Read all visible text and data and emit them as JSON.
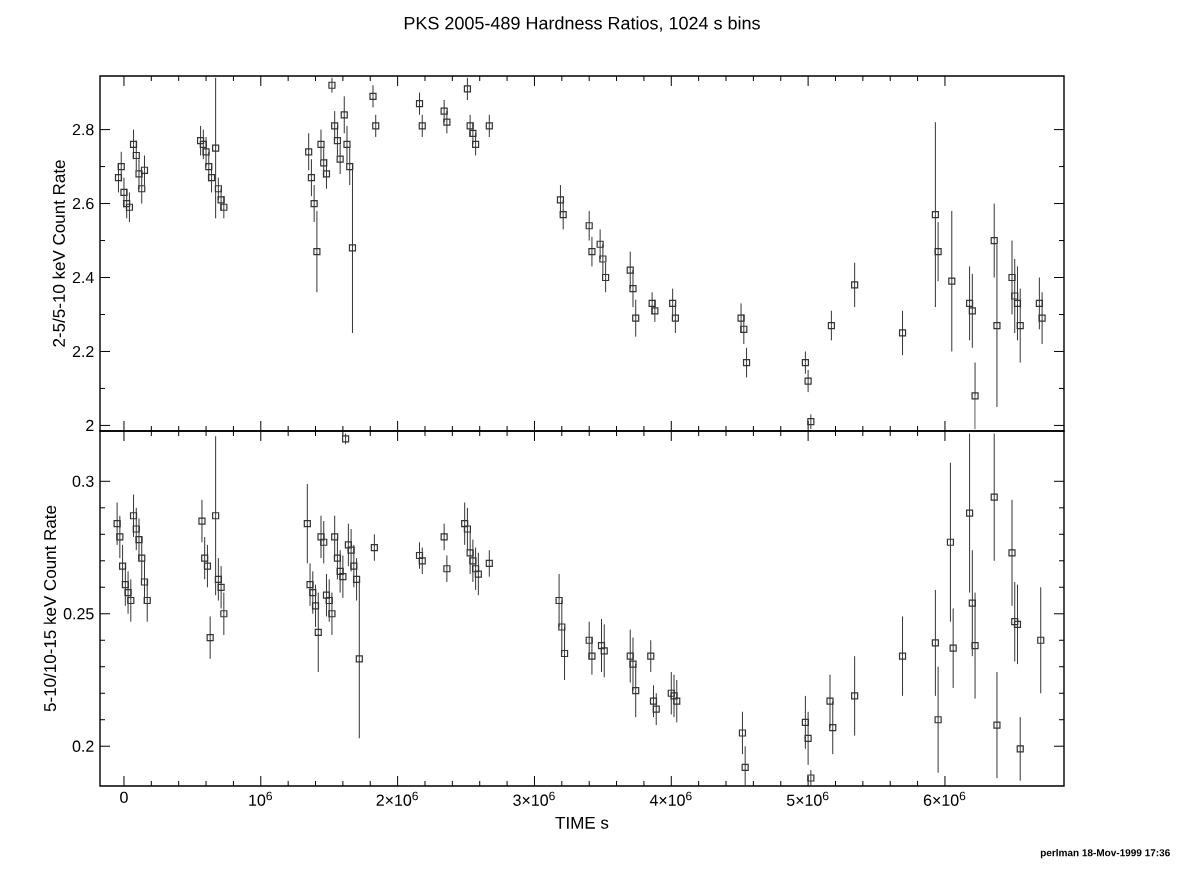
{
  "chart_data": [
    {
      "type": "scatter",
      "title": "PKS 2005-489 Hardness Ratios, 1024 s bins",
      "ylabel": "2-5/5-10 keV Count Rate",
      "marker": "square",
      "color": "#333333",
      "tick_labels": "y",
      "xlim": [
        -175000,
        6870000
      ],
      "ylim": [
        1.985,
        2.945
      ],
      "xticks": [
        {
          "value": 0,
          "label": null
        },
        {
          "value": 1000000,
          "label": null
        },
        {
          "value": 2000000,
          "label": null
        },
        {
          "value": 3000000,
          "label": null
        },
        {
          "value": 4000000,
          "label": null
        },
        {
          "value": 5000000,
          "label": null
        },
        {
          "value": 6000000,
          "label": null
        }
      ],
      "yticks": [
        2,
        2.2,
        2.4,
        2.6,
        2.8
      ],
      "x": [
        -40000,
        -20000,
        0,
        20000,
        40000,
        70000,
        90000,
        110000,
        130000,
        150000,
        560000,
        580000,
        600000,
        620000,
        640000,
        670000,
        690000,
        710000,
        730000,
        1350000,
        1370000,
        1390000,
        1410000,
        1440000,
        1460000,
        1480000,
        1520000,
        1540000,
        1560000,
        1580000,
        1610000,
        1630000,
        1650000,
        1670000,
        1820000,
        1840000,
        2160000,
        2180000,
        2340000,
        2360000,
        2510000,
        2530000,
        2550000,
        2570000,
        2670000,
        3190000,
        3210000,
        3400000,
        3420000,
        3480000,
        3500000,
        3520000,
        3700000,
        3720000,
        3740000,
        3860000,
        3880000,
        4010000,
        4030000,
        4510000,
        4530000,
        4550000,
        4980000,
        5000000,
        5020000,
        5170000,
        5340000,
        5690000,
        5930000,
        5950000,
        6050000,
        6180000,
        6200000,
        6220000,
        6360000,
        6380000,
        6490000,
        6510000,
        6530000,
        6550000,
        6690000,
        6710000
      ],
      "values": [
        2.67,
        2.7,
        2.63,
        2.6,
        2.59,
        2.76,
        2.73,
        2.68,
        2.64,
        2.69,
        2.77,
        2.76,
        2.74,
        2.7,
        2.67,
        2.75,
        2.64,
        2.61,
        2.59,
        2.74,
        2.67,
        2.6,
        2.47,
        2.76,
        2.71,
        2.68,
        2.92,
        2.81,
        2.77,
        2.72,
        2.84,
        2.76,
        2.7,
        2.48,
        2.89,
        2.81,
        2.87,
        2.81,
        2.85,
        2.82,
        2.91,
        2.81,
        2.79,
        2.76,
        2.81,
        2.61,
        2.57,
        2.54,
        2.47,
        2.49,
        2.45,
        2.4,
        2.42,
        2.37,
        2.29,
        2.33,
        2.31,
        2.33,
        2.29,
        2.29,
        2.26,
        2.17,
        2.17,
        2.12,
        2.01,
        2.27,
        2.38,
        2.25,
        2.57,
        2.47,
        2.39,
        2.33,
        2.31,
        2.08,
        2.5,
        2.27,
        2.4,
        2.35,
        2.33,
        2.27,
        2.33,
        2.29
      ],
      "errors": [
        0.04,
        0.04,
        0.04,
        0.04,
        0.04,
        0.04,
        0.04,
        0.04,
        0.04,
        0.04,
        0.04,
        0.04,
        0.04,
        0.04,
        0.04,
        0.19,
        0.03,
        0.03,
        0.03,
        0.05,
        0.05,
        0.05,
        0.11,
        0.04,
        0.04,
        0.04,
        0.02,
        0.04,
        0.04,
        0.04,
        0.05,
        0.05,
        0.05,
        0.23,
        0.03,
        0.03,
        0.03,
        0.03,
        0.03,
        0.03,
        0.03,
        0.03,
        0.03,
        0.03,
        0.03,
        0.04,
        0.04,
        0.04,
        0.04,
        0.04,
        0.04,
        0.04,
        0.05,
        0.05,
        0.05,
        0.03,
        0.03,
        0.04,
        0.04,
        0.04,
        0.04,
        0.04,
        0.03,
        0.03,
        0.02,
        0.04,
        0.06,
        0.06,
        0.25,
        0.08,
        0.19,
        0.1,
        0.1,
        0.09,
        0.1,
        0.22,
        0.1,
        0.1,
        0.1,
        0.1,
        0.07,
        0.07
      ]
    },
    {
      "type": "scatter",
      "xlabel": "TIME s",
      "ylabel": "5-10/10-15 keV Count Rate",
      "marker": "square",
      "color": "#333333",
      "annotations": [
        "perlman 18-Mov-1999 17:36"
      ],
      "xlim": [
        -175000,
        6870000
      ],
      "ylim": [
        0.185,
        0.319
      ],
      "xticks": [
        0,
        {
          "value": 1000000,
          "label": "10$^{6}$"
        },
        {
          "value": 2000000,
          "label": "2×10$^{6}$"
        },
        {
          "value": 3000000,
          "label": "3×10$^{6}$"
        },
        {
          "value": 4000000,
          "label": "4×10$^{6}$"
        },
        {
          "value": 5000000,
          "label": "5×10$^{6}$"
        },
        {
          "value": 6000000,
          "label": "6×10$^{6}$"
        }
      ],
      "yticks": [
        0.2,
        0.25,
        0.3
      ],
      "x": [
        -50000,
        -30000,
        -10000,
        10000,
        30000,
        50000,
        70000,
        90000,
        110000,
        130000,
        150000,
        170000,
        570000,
        590000,
        610000,
        630000,
        670000,
        690000,
        710000,
        730000,
        1340000,
        1360000,
        1380000,
        1400000,
        1420000,
        1440000,
        1460000,
        1480000,
        1500000,
        1520000,
        1540000,
        1560000,
        1580000,
        1600000,
        1620000,
        1640000,
        1660000,
        1680000,
        1700000,
        1720000,
        1830000,
        2160000,
        2180000,
        2340000,
        2360000,
        2490000,
        2510000,
        2530000,
        2550000,
        2570000,
        2590000,
        2670000,
        3180000,
        3200000,
        3220000,
        3400000,
        3420000,
        3490000,
        3510000,
        3700000,
        3720000,
        3740000,
        3850000,
        3870000,
        3890000,
        4000000,
        4020000,
        4040000,
        4520000,
        4540000,
        4980000,
        5000000,
        5020000,
        5160000,
        5180000,
        5340000,
        5690000,
        5930000,
        5950000,
        6040000,
        6060000,
        6180000,
        6200000,
        6220000,
        6360000,
        6380000,
        6490000,
        6510000,
        6530000,
        6550000,
        6700000
      ],
      "values": [
        0.284,
        0.279,
        0.268,
        0.261,
        0.258,
        0.255,
        0.287,
        0.282,
        0.278,
        0.271,
        0.262,
        0.255,
        0.285,
        0.271,
        0.268,
        0.241,
        0.287,
        0.263,
        0.26,
        0.25,
        0.284,
        0.261,
        0.258,
        0.253,
        0.243,
        0.279,
        0.277,
        0.257,
        0.255,
        0.25,
        0.279,
        0.271,
        0.266,
        0.264,
        0.316,
        0.276,
        0.274,
        0.268,
        0.263,
        0.233,
        0.275,
        0.272,
        0.27,
        0.279,
        0.267,
        0.284,
        0.282,
        0.273,
        0.27,
        0.267,
        0.265,
        0.269,
        0.255,
        0.245,
        0.235,
        0.24,
        0.234,
        0.238,
        0.236,
        0.234,
        0.231,
        0.221,
        0.234,
        0.217,
        0.214,
        0.22,
        0.219,
        0.217,
        0.205,
        0.192,
        0.209,
        0.203,
        0.188,
        0.217,
        0.207,
        0.219,
        0.234,
        0.239,
        0.21,
        0.277,
        0.237,
        0.288,
        0.254,
        0.238,
        0.294,
        0.208,
        0.273,
        0.247,
        0.246,
        0.199,
        0.24
      ],
      "errors": [
        0.008,
        0.008,
        0.008,
        0.008,
        0.008,
        0.008,
        0.008,
        0.008,
        0.008,
        0.008,
        0.008,
        0.008,
        0.008,
        0.008,
        0.008,
        0.008,
        0.03,
        0.008,
        0.008,
        0.008,
        0.015,
        0.008,
        0.008,
        0.008,
        0.015,
        0.008,
        0.008,
        0.008,
        0.008,
        0.008,
        0.008,
        0.008,
        0.008,
        0.008,
        0.002,
        0.008,
        0.008,
        0.008,
        0.008,
        0.03,
        0.005,
        0.005,
        0.005,
        0.005,
        0.005,
        0.008,
        0.008,
        0.008,
        0.008,
        0.008,
        0.008,
        0.005,
        0.01,
        0.01,
        0.01,
        0.007,
        0.007,
        0.01,
        0.01,
        0.01,
        0.01,
        0.01,
        0.006,
        0.006,
        0.006,
        0.008,
        0.008,
        0.008,
        0.008,
        0.008,
        0.01,
        0.01,
        0.003,
        0.01,
        0.01,
        0.015,
        0.015,
        0.02,
        0.02,
        0.03,
        0.015,
        0.03,
        0.02,
        0.02,
        0.024,
        0.02,
        0.02,
        0.015,
        0.015,
        0.012,
        0.02
      ]
    }
  ]
}
